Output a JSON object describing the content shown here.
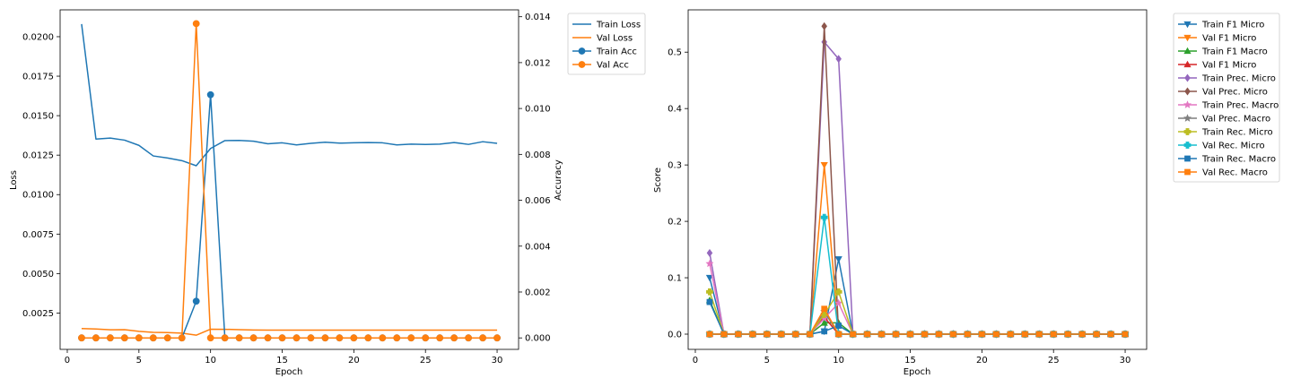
{
  "chart_data": [
    {
      "type": "line",
      "xlabel": "Epoch",
      "ylabel": "Loss",
      "y2label": "Accuracy",
      "xlim": [
        -0.5,
        31.5
      ],
      "xticks": [
        0,
        5,
        10,
        15,
        20,
        25,
        30
      ],
      "ylim": [
        0.0002,
        0.0217
      ],
      "yticks": [
        0.0025,
        0.005,
        0.0075,
        0.01,
        0.0125,
        0.015,
        0.0175,
        0.02
      ],
      "ytick_labels": [
        "0.0025",
        "0.0050",
        "0.0075",
        "0.0100",
        "0.0125",
        "0.0150",
        "0.0175",
        "0.0200"
      ],
      "y2lim": [
        -0.0005,
        0.0143
      ],
      "y2ticks": [
        0,
        0.002,
        0.004,
        0.006,
        0.008,
        0.01,
        0.012,
        0.014
      ],
      "y2tick_labels": [
        "0.000",
        "0.002",
        "0.004",
        "0.006",
        "0.008",
        "0.010",
        "0.012",
        "0.014"
      ],
      "grid": false,
      "legend_position": "outside-right",
      "x": [
        1,
        2,
        3,
        4,
        5,
        6,
        7,
        8,
        9,
        10,
        11,
        12,
        13,
        14,
        15,
        16,
        17,
        18,
        19,
        20,
        21,
        22,
        23,
        24,
        25,
        26,
        27,
        28,
        29,
        30
      ],
      "series": [
        {
          "name": "Train Loss",
          "axis": "left",
          "color": "#1f77b4",
          "marker": "none",
          "values": [
            0.0208,
            0.01352,
            0.01358,
            0.01345,
            0.01312,
            0.01245,
            0.01232,
            0.01215,
            0.01183,
            0.01292,
            0.01342,
            0.01343,
            0.01338,
            0.01322,
            0.01328,
            0.01315,
            0.01325,
            0.01332,
            0.01326,
            0.01328,
            0.0133,
            0.01328,
            0.01315,
            0.0132,
            0.01318,
            0.0132,
            0.0133,
            0.01318,
            0.01335,
            0.01325
          ]
        },
        {
          "name": "Val Loss",
          "axis": "left",
          "color": "#ff7f0e",
          "marker": "none",
          "values": [
            0.00152,
            0.00149,
            0.00144,
            0.00145,
            0.00134,
            0.00128,
            0.00126,
            0.00123,
            0.0011,
            0.00148,
            0.00147,
            0.00145,
            0.00143,
            0.00142,
            0.00142,
            0.00142,
            0.00142,
            0.00142,
            0.00142,
            0.00142,
            0.00142,
            0.00142,
            0.00142,
            0.00142,
            0.00142,
            0.00142,
            0.00142,
            0.00142,
            0.00142,
            0.00142
          ]
        },
        {
          "name": "Train Acc",
          "axis": "right",
          "color": "#1f77b4",
          "marker": "circle",
          "values": [
            0,
            0,
            0,
            0,
            0,
            0,
            0,
            0,
            0.0016,
            0.0106,
            0,
            0,
            0,
            0,
            0,
            0,
            0,
            0,
            0,
            0,
            0,
            0,
            0,
            0,
            0,
            0,
            0,
            0,
            0,
            0
          ]
        },
        {
          "name": "Val Acc",
          "axis": "right",
          "color": "#ff7f0e",
          "marker": "circle",
          "values": [
            0,
            0,
            0,
            0,
            0,
            0,
            0,
            0,
            0.0137,
            0,
            0,
            0,
            0,
            0,
            0,
            0,
            0,
            0,
            0,
            0,
            0,
            0,
            0,
            0,
            0,
            0,
            0,
            0,
            0,
            0
          ]
        }
      ]
    },
    {
      "type": "line",
      "xlabel": "Epoch",
      "ylabel": "Score",
      "xlim": [
        -0.5,
        31.5
      ],
      "xticks": [
        0,
        5,
        10,
        15,
        20,
        25,
        30
      ],
      "ylim": [
        -0.027,
        0.575
      ],
      "yticks": [
        0,
        0.1,
        0.2,
        0.3,
        0.4,
        0.5
      ],
      "ytick_labels": [
        "0.0",
        "0.1",
        "0.2",
        "0.3",
        "0.4",
        "0.5"
      ],
      "grid": false,
      "legend_position": "outside-right",
      "x": [
        1,
        2,
        3,
        4,
        5,
        6,
        7,
        8,
        9,
        10,
        11,
        12,
        13,
        14,
        15,
        16,
        17,
        18,
        19,
        20,
        21,
        22,
        23,
        24,
        25,
        26,
        27,
        28,
        29,
        30
      ],
      "series": [
        {
          "name": "Train F1 Micro",
          "color": "#1f77b4",
          "marker": "tri-down",
          "values": [
            0.1,
            0,
            0,
            0,
            0,
            0,
            0,
            0,
            0.005,
            0.133,
            0,
            0,
            0,
            0,
            0,
            0,
            0,
            0,
            0,
            0,
            0,
            0,
            0,
            0,
            0,
            0,
            0,
            0,
            0,
            0
          ]
        },
        {
          "name": "Val F1 Micro",
          "color": "#ff7f0e",
          "marker": "tri-down",
          "values": [
            0,
            0,
            0,
            0,
            0,
            0,
            0,
            0,
            0.3,
            0,
            0,
            0,
            0,
            0,
            0,
            0,
            0,
            0,
            0,
            0,
            0,
            0,
            0,
            0,
            0,
            0,
            0,
            0,
            0,
            0
          ]
        },
        {
          "name": "Train F1 Macro",
          "color": "#2ca02c",
          "marker": "tri-up",
          "values": [
            0.06,
            0,
            0,
            0,
            0,
            0,
            0,
            0,
            0.02,
            0.02,
            0,
            0,
            0,
            0,
            0,
            0,
            0,
            0,
            0,
            0,
            0,
            0,
            0,
            0,
            0,
            0,
            0,
            0,
            0,
            0
          ]
        },
        {
          "name": "Val F1 Micro",
          "color": "#d62728",
          "marker": "tri-up",
          "values": [
            0,
            0,
            0,
            0,
            0,
            0,
            0,
            0,
            0.03,
            0,
            0,
            0,
            0,
            0,
            0,
            0,
            0,
            0,
            0,
            0,
            0,
            0,
            0,
            0,
            0,
            0,
            0,
            0,
            0,
            0
          ]
        },
        {
          "name": "Train Prec. Micro",
          "color": "#9467bd",
          "marker": "diamond",
          "values": [
            0.144,
            0,
            0,
            0,
            0,
            0,
            0,
            0,
            0.518,
            0.488,
            0,
            0,
            0,
            0,
            0,
            0,
            0,
            0,
            0,
            0,
            0,
            0,
            0,
            0,
            0,
            0,
            0,
            0,
            0,
            0
          ]
        },
        {
          "name": "Val Prec. Micro",
          "color": "#8c564b",
          "marker": "diamond",
          "values": [
            0,
            0,
            0,
            0,
            0,
            0,
            0,
            0,
            0.546,
            0,
            0,
            0,
            0,
            0,
            0,
            0,
            0,
            0,
            0,
            0,
            0,
            0,
            0,
            0,
            0,
            0,
            0,
            0,
            0,
            0
          ]
        },
        {
          "name": "Train Prec. Macro",
          "color": "#e377c2",
          "marker": "star",
          "values": [
            0.125,
            0,
            0,
            0,
            0,
            0,
            0,
            0,
            0.028,
            0.055,
            0,
            0,
            0,
            0,
            0,
            0,
            0,
            0,
            0,
            0,
            0,
            0,
            0,
            0,
            0,
            0,
            0,
            0,
            0,
            0
          ]
        },
        {
          "name": "Val Prec. Macro",
          "color": "#7f7f7f",
          "marker": "star",
          "values": [
            0,
            0,
            0,
            0,
            0,
            0,
            0,
            0,
            0.04,
            0,
            0,
            0,
            0,
            0,
            0,
            0,
            0,
            0,
            0,
            0,
            0,
            0,
            0,
            0,
            0,
            0,
            0,
            0,
            0,
            0
          ]
        },
        {
          "name": "Train Rec. Micro",
          "color": "#bcbd22",
          "marker": "plus",
          "values": [
            0.075,
            0,
            0,
            0,
            0,
            0,
            0,
            0,
            0.035,
            0.075,
            0,
            0,
            0,
            0,
            0,
            0,
            0,
            0,
            0,
            0,
            0,
            0,
            0,
            0,
            0,
            0,
            0,
            0,
            0,
            0
          ]
        },
        {
          "name": "Val Rec. Micro",
          "color": "#17becf",
          "marker": "plus",
          "values": [
            0,
            0,
            0,
            0,
            0,
            0,
            0,
            0,
            0.207,
            0,
            0,
            0,
            0,
            0,
            0,
            0,
            0,
            0,
            0,
            0,
            0,
            0,
            0,
            0,
            0,
            0,
            0,
            0,
            0,
            0
          ]
        },
        {
          "name": "Train Rec. Macro",
          "color": "#1f77b4",
          "marker": "square",
          "values": [
            0.057,
            0,
            0,
            0,
            0,
            0,
            0,
            0,
            0.005,
            0.015,
            0,
            0,
            0,
            0,
            0,
            0,
            0,
            0,
            0,
            0,
            0,
            0,
            0,
            0,
            0,
            0,
            0,
            0,
            0,
            0
          ]
        },
        {
          "name": "Val Rec. Macro",
          "color": "#ff7f0e",
          "marker": "square",
          "values": [
            0,
            0,
            0,
            0,
            0,
            0,
            0,
            0,
            0.045,
            0,
            0,
            0,
            0,
            0,
            0,
            0,
            0,
            0,
            0,
            0,
            0,
            0,
            0,
            0,
            0,
            0,
            0,
            0,
            0,
            0
          ]
        }
      ]
    }
  ]
}
